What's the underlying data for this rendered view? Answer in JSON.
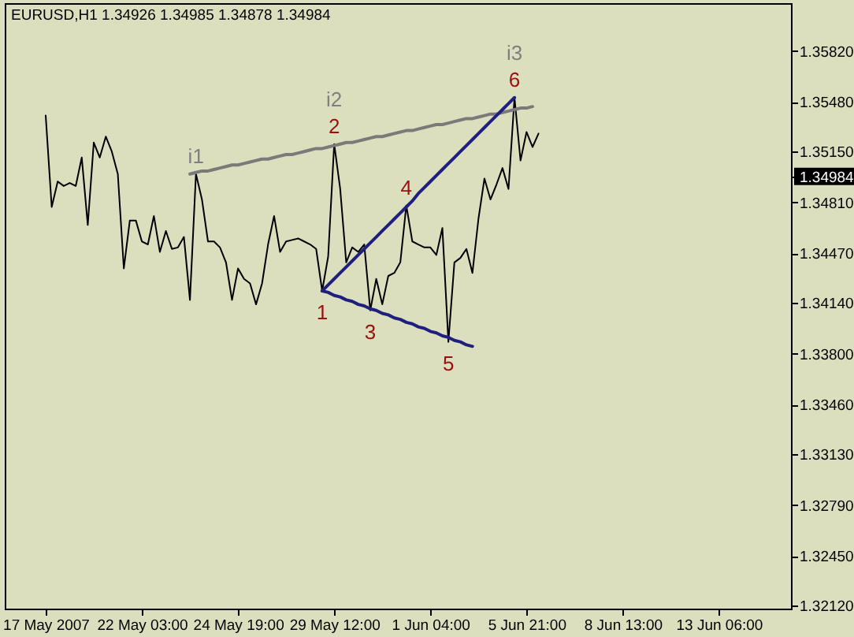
{
  "chart_data": {
    "type": "line",
    "title": "EURUSD,H1 1.34926 1.34985 1.34878 1.34984",
    "categories": [
      "17 May 2007",
      null,
      null,
      null,
      null,
      null,
      null,
      null,
      null,
      null,
      null,
      null,
      null,
      null,
      null,
      null,
      "22 May 03:00",
      null,
      null,
      null,
      null,
      null,
      null,
      null,
      null,
      null,
      null,
      null,
      null,
      null,
      null,
      null,
      "24 May 19:00",
      null,
      null,
      null,
      null,
      null,
      null,
      null,
      null,
      null,
      null,
      null,
      null,
      null,
      null,
      null,
      "29 May 12:00",
      null,
      null,
      null,
      null,
      null,
      null,
      null,
      null,
      null,
      null,
      null,
      null,
      null,
      null,
      null,
      "1 Jun 04:00",
      null,
      null,
      null,
      null,
      null,
      null,
      null,
      null,
      null,
      null,
      null,
      null,
      null,
      null,
      null,
      "5 Jun 21:00",
      null,
      null,
      null,
      null,
      null,
      null,
      null,
      null,
      null,
      null,
      null,
      null,
      null,
      null,
      null,
      "8 Jun 13:00",
      null,
      null,
      null,
      null,
      null,
      null,
      null,
      null,
      null,
      null,
      null,
      null,
      null,
      null,
      null,
      "13 Jun 06:00",
      null,
      null,
      null,
      null,
      null,
      null,
      null,
      null,
      null,
      null,
      null,
      null
    ],
    "ylim": [
      1.321,
      1.3614
    ],
    "yticks": [
      {
        "value": 1.3582,
        "label": "1.35820"
      },
      {
        "value": 1.3548,
        "label": "1.35480"
      },
      {
        "value": 1.3515,
        "label": "1.35150"
      },
      1.34984,
      {
        "value": 1.3481,
        "label": "1.34810"
      },
      {
        "value": 1.3447,
        "label": "1.34470"
      },
      {
        "value": 1.3414,
        "label": "1.34140"
      },
      {
        "value": 1.338,
        "label": "1.33800"
      },
      {
        "value": 1.3346,
        "label": "1.33460"
      },
      {
        "value": 1.3313,
        "label": "1.33130"
      },
      {
        "value": 1.3279,
        "label": "1.32790"
      },
      {
        "value": 1.3245,
        "label": "1.32450"
      },
      {
        "value": 1.3212,
        "label": "1.32120"
      }
    ],
    "series": [
      {
        "color": "#000000",
        "values": [
          1.3539,
          1.3478,
          1.3495,
          1.3492,
          1.3494,
          1.3492,
          1.3511,
          1.3466,
          1.3521,
          1.3511,
          1.3525,
          1.3515,
          1.35,
          1.3437,
          1.3469,
          1.3469,
          1.3455,
          1.3453,
          1.3472,
          1.3448,
          1.3462,
          1.345,
          1.3451,
          1.3458,
          1.3416,
          1.35,
          1.3483,
          1.3455,
          1.3455,
          1.3451,
          1.3441,
          1.3416,
          1.3437,
          1.343,
          1.3427,
          1.3413,
          1.3427,
          1.3453,
          1.3472,
          1.3448,
          1.3455,
          1.3456,
          1.3457,
          1.3455,
          1.3453,
          1.345,
          1.3422,
          1.3445,
          1.352,
          1.349,
          1.3441,
          1.3451,
          1.3448,
          1.3453,
          1.3409,
          1.343,
          1.3413,
          1.3432,
          1.3434,
          1.3441,
          1.3479,
          1.3455,
          1.3453,
          1.3451,
          1.3451,
          1.3446,
          1.3464,
          1.3388,
          1.3441,
          1.3444,
          1.345,
          1.3434,
          1.347,
          1.3497,
          1.3483,
          1.3493,
          1.3504,
          1.349,
          1.3551,
          1.3509,
          1.3528,
          1.3518,
          1.3527,
          null,
          null,
          null,
          null,
          null,
          null,
          null,
          null,
          null,
          null,
          null,
          null,
          null,
          null,
          null,
          null,
          null,
          null,
          null,
          null,
          null,
          null,
          null,
          null,
          null,
          null,
          null,
          null,
          null,
          null,
          null,
          null,
          null,
          null,
          null,
          null,
          null,
          null,
          null,
          null,
          null,
          null
        ]
      },
      {
        "color": "#7a7a7a",
        "values": [
          null,
          null,
          null,
          null,
          null,
          null,
          null,
          null,
          null,
          null,
          null,
          null,
          null,
          null,
          null,
          null,
          null,
          null,
          null,
          null,
          null,
          null,
          null,
          null,
          1.35,
          1.3501,
          1.3502,
          1.3502,
          1.3503,
          1.3504,
          1.3505,
          1.3506,
          1.3506,
          1.3507,
          1.3508,
          1.3509,
          1.351,
          1.351,
          1.3511,
          1.3512,
          1.3513,
          1.3513,
          1.3514,
          1.3515,
          1.3516,
          1.3517,
          1.3517,
          1.3518,
          1.3519,
          1.352,
          1.3521,
          1.3521,
          1.3522,
          1.3523,
          1.3524,
          1.3525,
          1.3525,
          1.3526,
          1.3527,
          1.3528,
          1.3529,
          1.3529,
          1.353,
          1.3531,
          1.3532,
          1.3533,
          1.3533,
          1.3534,
          1.3535,
          1.3536,
          1.3537,
          1.3537,
          1.3538,
          1.3539,
          1.354,
          1.354,
          1.3541,
          1.3542,
          1.3543,
          1.3544,
          1.3544,
          1.3545,
          null,
          null,
          null,
          null,
          null,
          null,
          null,
          null,
          null,
          null,
          null,
          null,
          null,
          null,
          null,
          null,
          null,
          null,
          null,
          null,
          null,
          null,
          null,
          null,
          null,
          null,
          null,
          null,
          null,
          null,
          null,
          null,
          null,
          null,
          null,
          null,
          null,
          null,
          null,
          null,
          null,
          null,
          null
        ]
      },
      {
        "color": "#1f1f7f",
        "values": [
          null,
          null,
          null,
          null,
          null,
          null,
          null,
          null,
          null,
          null,
          null,
          null,
          null,
          null,
          null,
          null,
          null,
          null,
          null,
          null,
          null,
          null,
          null,
          null,
          null,
          null,
          null,
          null,
          null,
          null,
          null,
          null,
          null,
          null,
          null,
          null,
          null,
          null,
          null,
          null,
          null,
          null,
          null,
          null,
          null,
          null,
          1.3422,
          1.3426,
          1.343,
          1.3434,
          1.3438,
          1.3442,
          1.3446,
          1.345,
          1.3454,
          1.3458,
          1.3462,
          1.3466,
          1.347,
          1.3474,
          1.3478,
          1.3482,
          1.3487,
          1.3491,
          1.3495,
          1.3499,
          1.3503,
          1.3507,
          1.3511,
          1.3515,
          1.3519,
          1.3523,
          1.3527,
          1.3531,
          1.3535,
          1.3539,
          1.3543,
          1.3547,
          1.3551,
          null,
          null,
          null,
          null,
          null,
          null,
          null,
          null,
          null,
          null,
          null,
          null,
          null,
          null,
          null,
          null,
          null,
          null,
          null,
          null,
          null,
          null,
          null,
          null,
          null,
          null,
          null,
          null,
          null,
          null,
          null,
          null,
          null,
          null,
          null,
          null,
          null,
          null,
          null,
          null,
          null,
          null,
          null,
          null,
          null,
          null
        ]
      },
      {
        "color": "#1f1f7f",
        "values": [
          null,
          null,
          null,
          null,
          null,
          null,
          null,
          null,
          null,
          null,
          null,
          null,
          null,
          null,
          null,
          null,
          null,
          null,
          null,
          null,
          null,
          null,
          null,
          null,
          null,
          null,
          null,
          null,
          null,
          null,
          null,
          null,
          null,
          null,
          null,
          null,
          null,
          null,
          null,
          null,
          null,
          null,
          null,
          null,
          null,
          null,
          1.3422,
          1.3421,
          1.3419,
          1.3418,
          1.3416,
          1.3415,
          1.3413,
          1.3412,
          1.341,
          1.3409,
          1.3407,
          1.3406,
          1.3404,
          1.3403,
          1.3401,
          1.34,
          1.3398,
          1.3397,
          1.3395,
          1.3394,
          1.3392,
          1.3391,
          1.3389,
          1.3388,
          1.3386,
          1.3385,
          null,
          null,
          null,
          null,
          null,
          null,
          null,
          null,
          null,
          null,
          null,
          null,
          null,
          null,
          null,
          null,
          null,
          null,
          null,
          null,
          null,
          null,
          null,
          null,
          null,
          null,
          null,
          null,
          null,
          null,
          null,
          null,
          null,
          null,
          null,
          null,
          null,
          null,
          null,
          null,
          null,
          null,
          null,
          null,
          null,
          null,
          null,
          null,
          null,
          null,
          null,
          null,
          null
        ]
      }
    ],
    "annotations": [
      {
        "text": "1",
        "y": 1.3422
      },
      {
        "text": "2",
        "y": 1.352
      },
      {
        "text": "3",
        "y": 1.3409
      },
      {
        "text": "4",
        "y": 1.3479
      },
      {
        "text": "5",
        "y": 1.3388
      },
      {
        "text": "6",
        "y": 1.3551
      },
      {
        "text": "i1",
        "y": 1.35
      },
      {
        "text": "i2",
        "y": 1.352
      },
      {
        "text": "i3",
        "y": 1.3551
      }
    ]
  }
}
